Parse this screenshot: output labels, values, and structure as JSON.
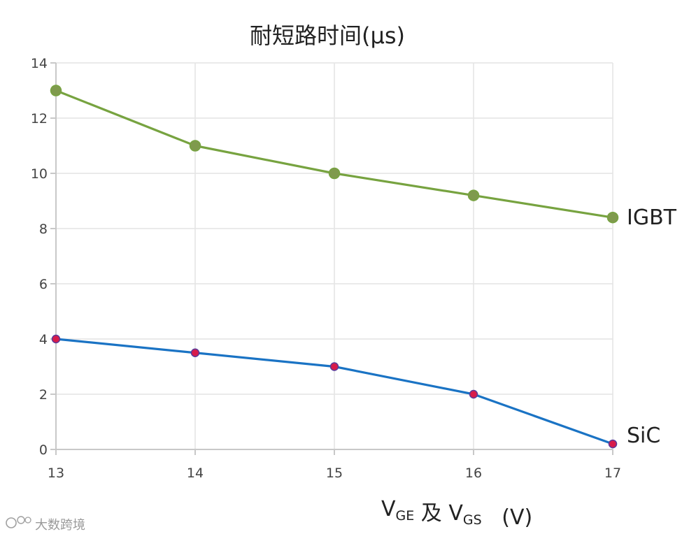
{
  "chart_data": {
    "type": "line",
    "title": "耐短路时间(μs)",
    "xlabel": {
      "parts": [
        {
          "text": "V",
          "sub": "GE"
        },
        {
          "text": " 及 V",
          "sub": "GS"
        },
        {
          "text": "   (V)",
          "sub": ""
        }
      ]
    },
    "ylabel": "",
    "x": [
      13,
      14,
      15,
      16,
      17
    ],
    "xlim": [
      13,
      17
    ],
    "ylim": [
      0,
      14
    ],
    "yticks": [
      0,
      2,
      4,
      6,
      8,
      10,
      12,
      14
    ],
    "grid": true,
    "series": [
      {
        "name": "IGBT",
        "values": [
          13,
          11,
          10,
          9.2,
          8.4
        ],
        "line_color": "#77a340",
        "marker_color": "#7f9a4d",
        "marker_stroke": "#77a340"
      },
      {
        "name": "SiC",
        "values": [
          4,
          3.5,
          3,
          2,
          0.2
        ],
        "line_color": "#1a73c4",
        "marker_color": "#d81b4a",
        "marker_stroke": "#5a3a9a"
      }
    ]
  },
  "watermark": {
    "text": "大数跨境",
    "icon": "chat-bubble-logo-icon"
  }
}
